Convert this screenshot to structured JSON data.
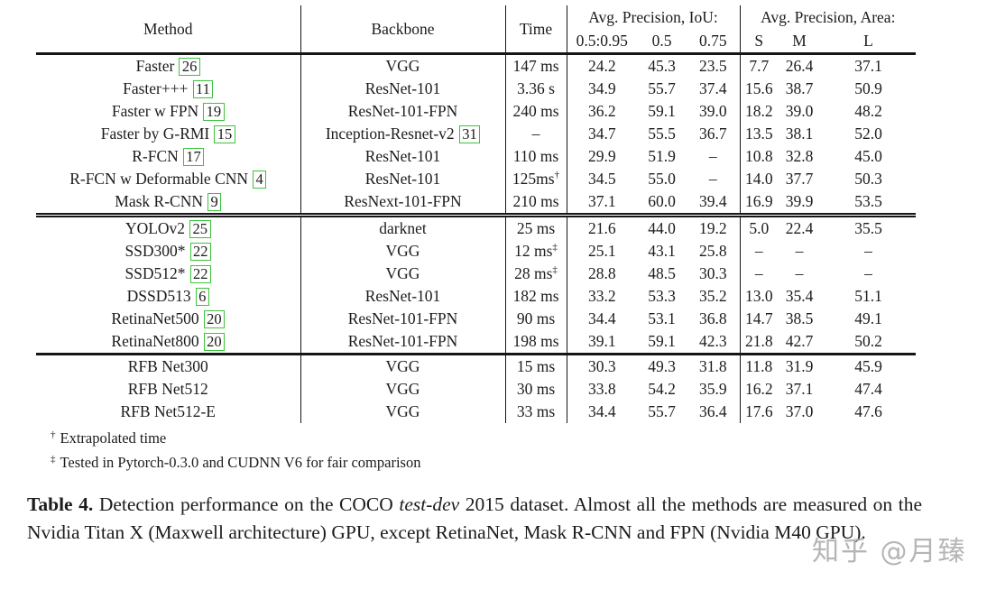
{
  "table": {
    "header": {
      "method": "Method",
      "backbone": "Backbone",
      "time": "Time",
      "ap_iou_group": "Avg. Precision, IoU:",
      "ap_iou_cols": [
        "0.5:0.95",
        "0.5",
        "0.75"
      ],
      "ap_area_group": "Avg. Precision, Area:",
      "ap_area_cols": [
        "S",
        "M",
        "L"
      ]
    },
    "sections": [
      {
        "rows": [
          {
            "method": "Faster",
            "cite": "26",
            "backbone": "VGG",
            "time": "147 ms",
            "values": [
              "24.2",
              "45.3",
              "23.5",
              "7.7",
              "26.4",
              "37.1"
            ]
          },
          {
            "method": "Faster+++",
            "cite": "11",
            "backbone": "ResNet-101",
            "time": "3.36 s",
            "values": [
              "34.9",
              "55.7",
              "37.4",
              "15.6",
              "38.7",
              "50.9"
            ]
          },
          {
            "method": "Faster w FPN",
            "cite": "19",
            "backbone": "ResNet-101-FPN",
            "time": "240 ms",
            "values": [
              "36.2",
              "59.1",
              "39.0",
              "18.2",
              "39.0",
              "48.2"
            ]
          },
          {
            "method": "Faster by G-RMI",
            "cite": "15",
            "backbone": "Inception-Resnet-v2",
            "backbone_cite": "31",
            "time": "–",
            "values": [
              "34.7",
              "55.5",
              "36.7",
              "13.5",
              "38.1",
              "52.0"
            ]
          },
          {
            "method": "R-FCN",
            "cite": "17",
            "backbone": "ResNet-101",
            "time": "110 ms",
            "values": [
              "29.9",
              "51.9",
              "–",
              "10.8",
              "32.8",
              "45.0"
            ]
          },
          {
            "method": "R-FCN w Deformable CNN",
            "cite": "4",
            "backbone": "ResNet-101",
            "time": "125ms",
            "time_sup": "†",
            "values": [
              "34.5",
              "55.0",
              "–",
              "14.0",
              "37.7",
              "50.3"
            ]
          },
          {
            "method": "Mask R-CNN",
            "cite": "9",
            "backbone": "ResNext-101-FPN",
            "time": "210 ms",
            "values": [
              "37.1",
              "60.0",
              "39.4",
              "16.9",
              "39.9",
              "53.5"
            ]
          }
        ]
      },
      {
        "rows": [
          {
            "method": "YOLOv2",
            "cite": "25",
            "backbone": "darknet",
            "time": "25 ms",
            "values": [
              "21.6",
              "44.0",
              "19.2",
              "5.0",
              "22.4",
              "35.5"
            ]
          },
          {
            "method": "SSD300*",
            "cite": "22",
            "backbone": "VGG",
            "time": "12 ms",
            "time_sup": "‡",
            "values": [
              "25.1",
              "43.1",
              "25.8",
              "–",
              "–",
              "–"
            ]
          },
          {
            "method": "SSD512*",
            "cite": "22",
            "backbone": "VGG",
            "time": "28 ms",
            "time_sup": "‡",
            "values": [
              "28.8",
              "48.5",
              "30.3",
              "–",
              "–",
              "–"
            ]
          },
          {
            "method": "DSSD513",
            "cite": "6",
            "backbone": "ResNet-101",
            "time": "182 ms",
            "values": [
              "33.2",
              "53.3",
              "35.2",
              "13.0",
              "35.4",
              "51.1"
            ]
          },
          {
            "method": "RetinaNet500",
            "cite": "20",
            "backbone": "ResNet-101-FPN",
            "time": "90 ms",
            "values": [
              "34.4",
              "53.1",
              "36.8",
              "14.7",
              "38.5",
              "49.1"
            ]
          },
          {
            "method": "RetinaNet800",
            "cite": "20",
            "backbone": "ResNet-101-FPN",
            "time": "198 ms",
            "bold_ap": true,
            "values": [
              "39.1",
              "59.1",
              "42.3",
              "21.8",
              "42.7",
              "50.2"
            ]
          }
        ]
      },
      {
        "rows": [
          {
            "method": "RFB Net300",
            "backbone": "VGG",
            "time": "15 ms",
            "bold_time": true,
            "bold_ap": true,
            "values": [
              "30.3",
              "49.3",
              "31.8",
              "11.8",
              "31.9",
              "45.9"
            ]
          },
          {
            "method": "RFB Net512",
            "backbone": "VGG",
            "time": "30 ms",
            "bold_time": true,
            "bold_ap": true,
            "values": [
              "33.8",
              "54.2",
              "35.9",
              "16.2",
              "37.1",
              "47.4"
            ]
          },
          {
            "method": "RFB Net512-E",
            "backbone": "VGG",
            "time": "33 ms",
            "bold_time": true,
            "bold_ap": true,
            "values": [
              "34.4",
              "55.7",
              "36.4",
              "17.6",
              "37.0",
              "47.6"
            ]
          }
        ]
      }
    ],
    "footnotes": [
      {
        "marker": "†",
        "text": "Extrapolated time"
      },
      {
        "marker": "‡",
        "text": "Tested in Pytorch-0.3.0 and CUDNN V6 for fair comparison"
      }
    ]
  },
  "caption": {
    "label": "Table 4.",
    "text_before_italic": " Detection performance on the COCO ",
    "italic": "test-dev",
    "text_after_italic": " 2015 dataset. Almost all the methods are measured on the Nvidia Titan X (Maxwell architecture) GPU, except RetinaNet, Mask R-CNN and FPN (Nvidia M40 GPU)."
  },
  "watermark": "知乎 @月臻",
  "colors": {
    "background": "#ffffff",
    "text": "#1c1c1c",
    "cite_box_border": "#3bc43b",
    "watermark": "#a8a8a8"
  }
}
